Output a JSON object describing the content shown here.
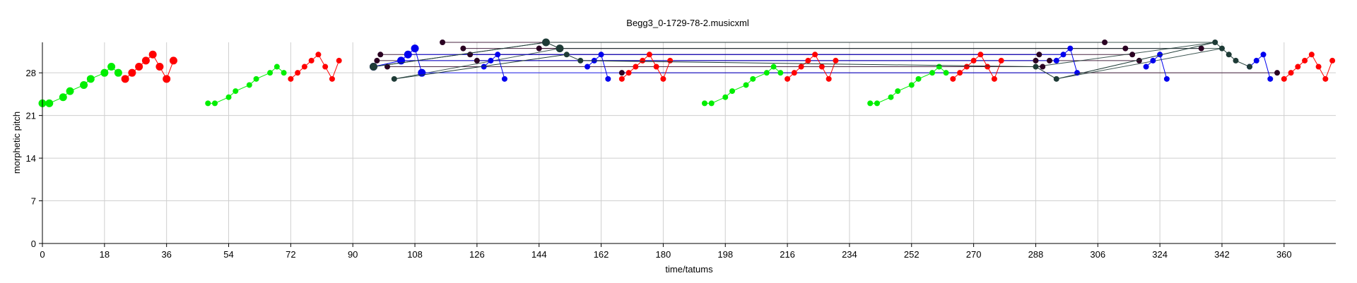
{
  "chart_data": {
    "type": "scatter",
    "title": "Begg3_0-1729-78-2.musicxml",
    "xlabel": "time/tatums",
    "ylabel": "morphetic pitch",
    "xlim": [
      0,
      375
    ],
    "ylim": [
      0,
      33
    ],
    "xticks": [
      0,
      18,
      36,
      54,
      72,
      90,
      108,
      126,
      144,
      162,
      180,
      198,
      216,
      234,
      252,
      270,
      288,
      306,
      324,
      342,
      360
    ],
    "yticks": [
      0,
      7,
      14,
      21,
      28
    ],
    "grid": true,
    "colors": {
      "green": "#00ee00",
      "red": "#ff0000",
      "blue": "#0000ee",
      "dark": "#2a0022",
      "teal": "#1e3b36"
    },
    "series": [
      {
        "color": "green",
        "size": "large",
        "x": [
          0,
          2,
          6,
          8,
          12,
          14,
          18,
          20,
          22
        ],
        "y": [
          23,
          23,
          24,
          25,
          26,
          27,
          28,
          29,
          28
        ]
      },
      {
        "color": "red",
        "size": "large",
        "x": [
          24,
          26,
          28,
          30,
          32,
          34,
          36,
          38
        ],
        "y": [
          27,
          28,
          29,
          30,
          31,
          29,
          27,
          30
        ]
      },
      {
        "color": "green",
        "size": "small",
        "x": [
          48,
          50,
          54,
          56,
          60,
          62,
          66,
          68,
          70
        ],
        "y": [
          23,
          23,
          24,
          25,
          26,
          27,
          28,
          29,
          28
        ]
      },
      {
        "color": "red",
        "size": "small",
        "x": [
          72,
          74,
          76,
          78,
          80,
          82,
          84,
          86
        ],
        "y": [
          27,
          28,
          29,
          30,
          31,
          29,
          27,
          30
        ]
      },
      {
        "color": "blue",
        "size": "large",
        "x": [
          96,
          104,
          106,
          108,
          110
        ],
        "y": [
          29,
          30,
          31,
          32,
          28
        ]
      },
      {
        "color": "blue",
        "size": "small",
        "x": [
          128,
          130,
          132,
          134
        ],
        "y": [
          29,
          30,
          31,
          27
        ]
      },
      {
        "color": "blue",
        "size": "small",
        "x": [
          158,
          160,
          162,
          164
        ],
        "y": [
          29,
          30,
          31,
          27
        ]
      },
      {
        "color": "red",
        "size": "small",
        "x": [
          168,
          170,
          172,
          174,
          176,
          178,
          180,
          182
        ],
        "y": [
          27,
          28,
          29,
          30,
          31,
          29,
          27,
          30
        ]
      },
      {
        "color": "green",
        "size": "small",
        "x": [
          192,
          194,
          198,
          200,
          204,
          206,
          210,
          212,
          214
        ],
        "y": [
          23,
          23,
          24,
          25,
          26,
          27,
          28,
          29,
          28
        ]
      },
      {
        "color": "red",
        "size": "small",
        "x": [
          216,
          218,
          220,
          222,
          224,
          226,
          228,
          230
        ],
        "y": [
          27,
          28,
          29,
          30,
          31,
          29,
          27,
          30
        ]
      },
      {
        "color": "green",
        "size": "small",
        "x": [
          240,
          242,
          246,
          248,
          252,
          254,
          258,
          260,
          262
        ],
        "y": [
          23,
          23,
          24,
          25,
          26,
          27,
          28,
          29,
          28
        ]
      },
      {
        "color": "red",
        "size": "small",
        "x": [
          264,
          266,
          268,
          270,
          272,
          274,
          276,
          278
        ],
        "y": [
          27,
          28,
          29,
          30,
          31,
          29,
          27,
          30
        ]
      },
      {
        "color": "blue",
        "size": "small",
        "x": [
          294,
          296,
          298,
          300
        ],
        "y": [
          30,
          31,
          32,
          28
        ]
      },
      {
        "color": "blue",
        "size": "small",
        "x": [
          320,
          322,
          324,
          326
        ],
        "y": [
          29,
          30,
          31,
          27
        ]
      },
      {
        "color": "blue",
        "size": "small",
        "x": [
          350,
          352,
          354,
          356
        ],
        "y": [
          29,
          30,
          31,
          27
        ]
      },
      {
        "color": "red",
        "size": "small",
        "x": [
          360,
          362,
          364,
          366,
          368,
          370,
          372,
          374
        ],
        "y": [
          27,
          28,
          29,
          30,
          31,
          29,
          27,
          30
        ]
      },
      {
        "color": "dark",
        "size": "small",
        "x": [
          97,
          98,
          100,
          116,
          122,
          124,
          126
        ],
        "y": [
          30,
          31,
          29,
          33,
          32,
          31,
          30
        ]
      },
      {
        "color": "dark",
        "size": "small",
        "x": [
          144,
          168,
          288,
          289,
          290,
          292,
          308,
          314,
          316,
          318,
          336,
          358
        ],
        "y": [
          32,
          28,
          30,
          31,
          29,
          30,
          33,
          32,
          31,
          30,
          32,
          28
        ]
      },
      {
        "color": "teal",
        "size": "large",
        "x": [
          96,
          146,
          150
        ],
        "y": [
          29,
          33,
          32
        ]
      },
      {
        "color": "teal",
        "size": "small",
        "x": [
          102,
          152,
          156,
          288,
          294,
          340,
          342,
          344,
          346,
          350
        ],
        "y": [
          27,
          31,
          30,
          29,
          27,
          33,
          32,
          31,
          30,
          29
        ]
      }
    ],
    "segments": [
      {
        "color": "dark",
        "x": [
          116,
          308
        ],
        "y": [
          33,
          33
        ]
      },
      {
        "color": "dark",
        "x": [
          122,
          314
        ],
        "y": [
          32,
          32
        ]
      },
      {
        "color": "dark",
        "x": [
          124,
          316
        ],
        "y": [
          31,
          31
        ]
      },
      {
        "color": "dark",
        "x": [
          126,
          318
        ],
        "y": [
          30,
          30
        ]
      },
      {
        "color": "dark",
        "x": [
          97,
          288
        ],
        "y": [
          30,
          30
        ]
      },
      {
        "color": "dark",
        "x": [
          98,
          289
        ],
        "y": [
          31,
          31
        ]
      },
      {
        "color": "dark",
        "x": [
          100,
          290
        ],
        "y": [
          29,
          29
        ]
      },
      {
        "color": "dark",
        "x": [
          144,
          336
        ],
        "y": [
          32,
          32
        ]
      },
      {
        "color": "dark",
        "x": [
          168,
          358
        ],
        "y": [
          28,
          28
        ]
      },
      {
        "color": "teal",
        "x": [
          96,
          146
        ],
        "y": [
          29,
          33
        ]
      },
      {
        "color": "teal",
        "x": [
          102,
          150
        ],
        "y": [
          27,
          32
        ]
      },
      {
        "color": "teal",
        "x": [
          150,
          342
        ],
        "y": [
          32,
          32
        ]
      },
      {
        "color": "teal",
        "x": [
          146,
          340
        ],
        "y": [
          33,
          33
        ]
      },
      {
        "color": "teal",
        "x": [
          288,
          340
        ],
        "y": [
          29,
          33
        ]
      },
      {
        "color": "teal",
        "x": [
          294,
          342
        ],
        "y": [
          27,
          32
        ]
      },
      {
        "color": "blue",
        "x": [
          110,
          300
        ],
        "y": [
          28,
          28
        ]
      },
      {
        "color": "blue",
        "x": [
          104,
          294
        ],
        "y": [
          30,
          30
        ]
      },
      {
        "color": "blue",
        "x": [
          106,
          296
        ],
        "y": [
          31,
          31
        ]
      }
    ]
  }
}
